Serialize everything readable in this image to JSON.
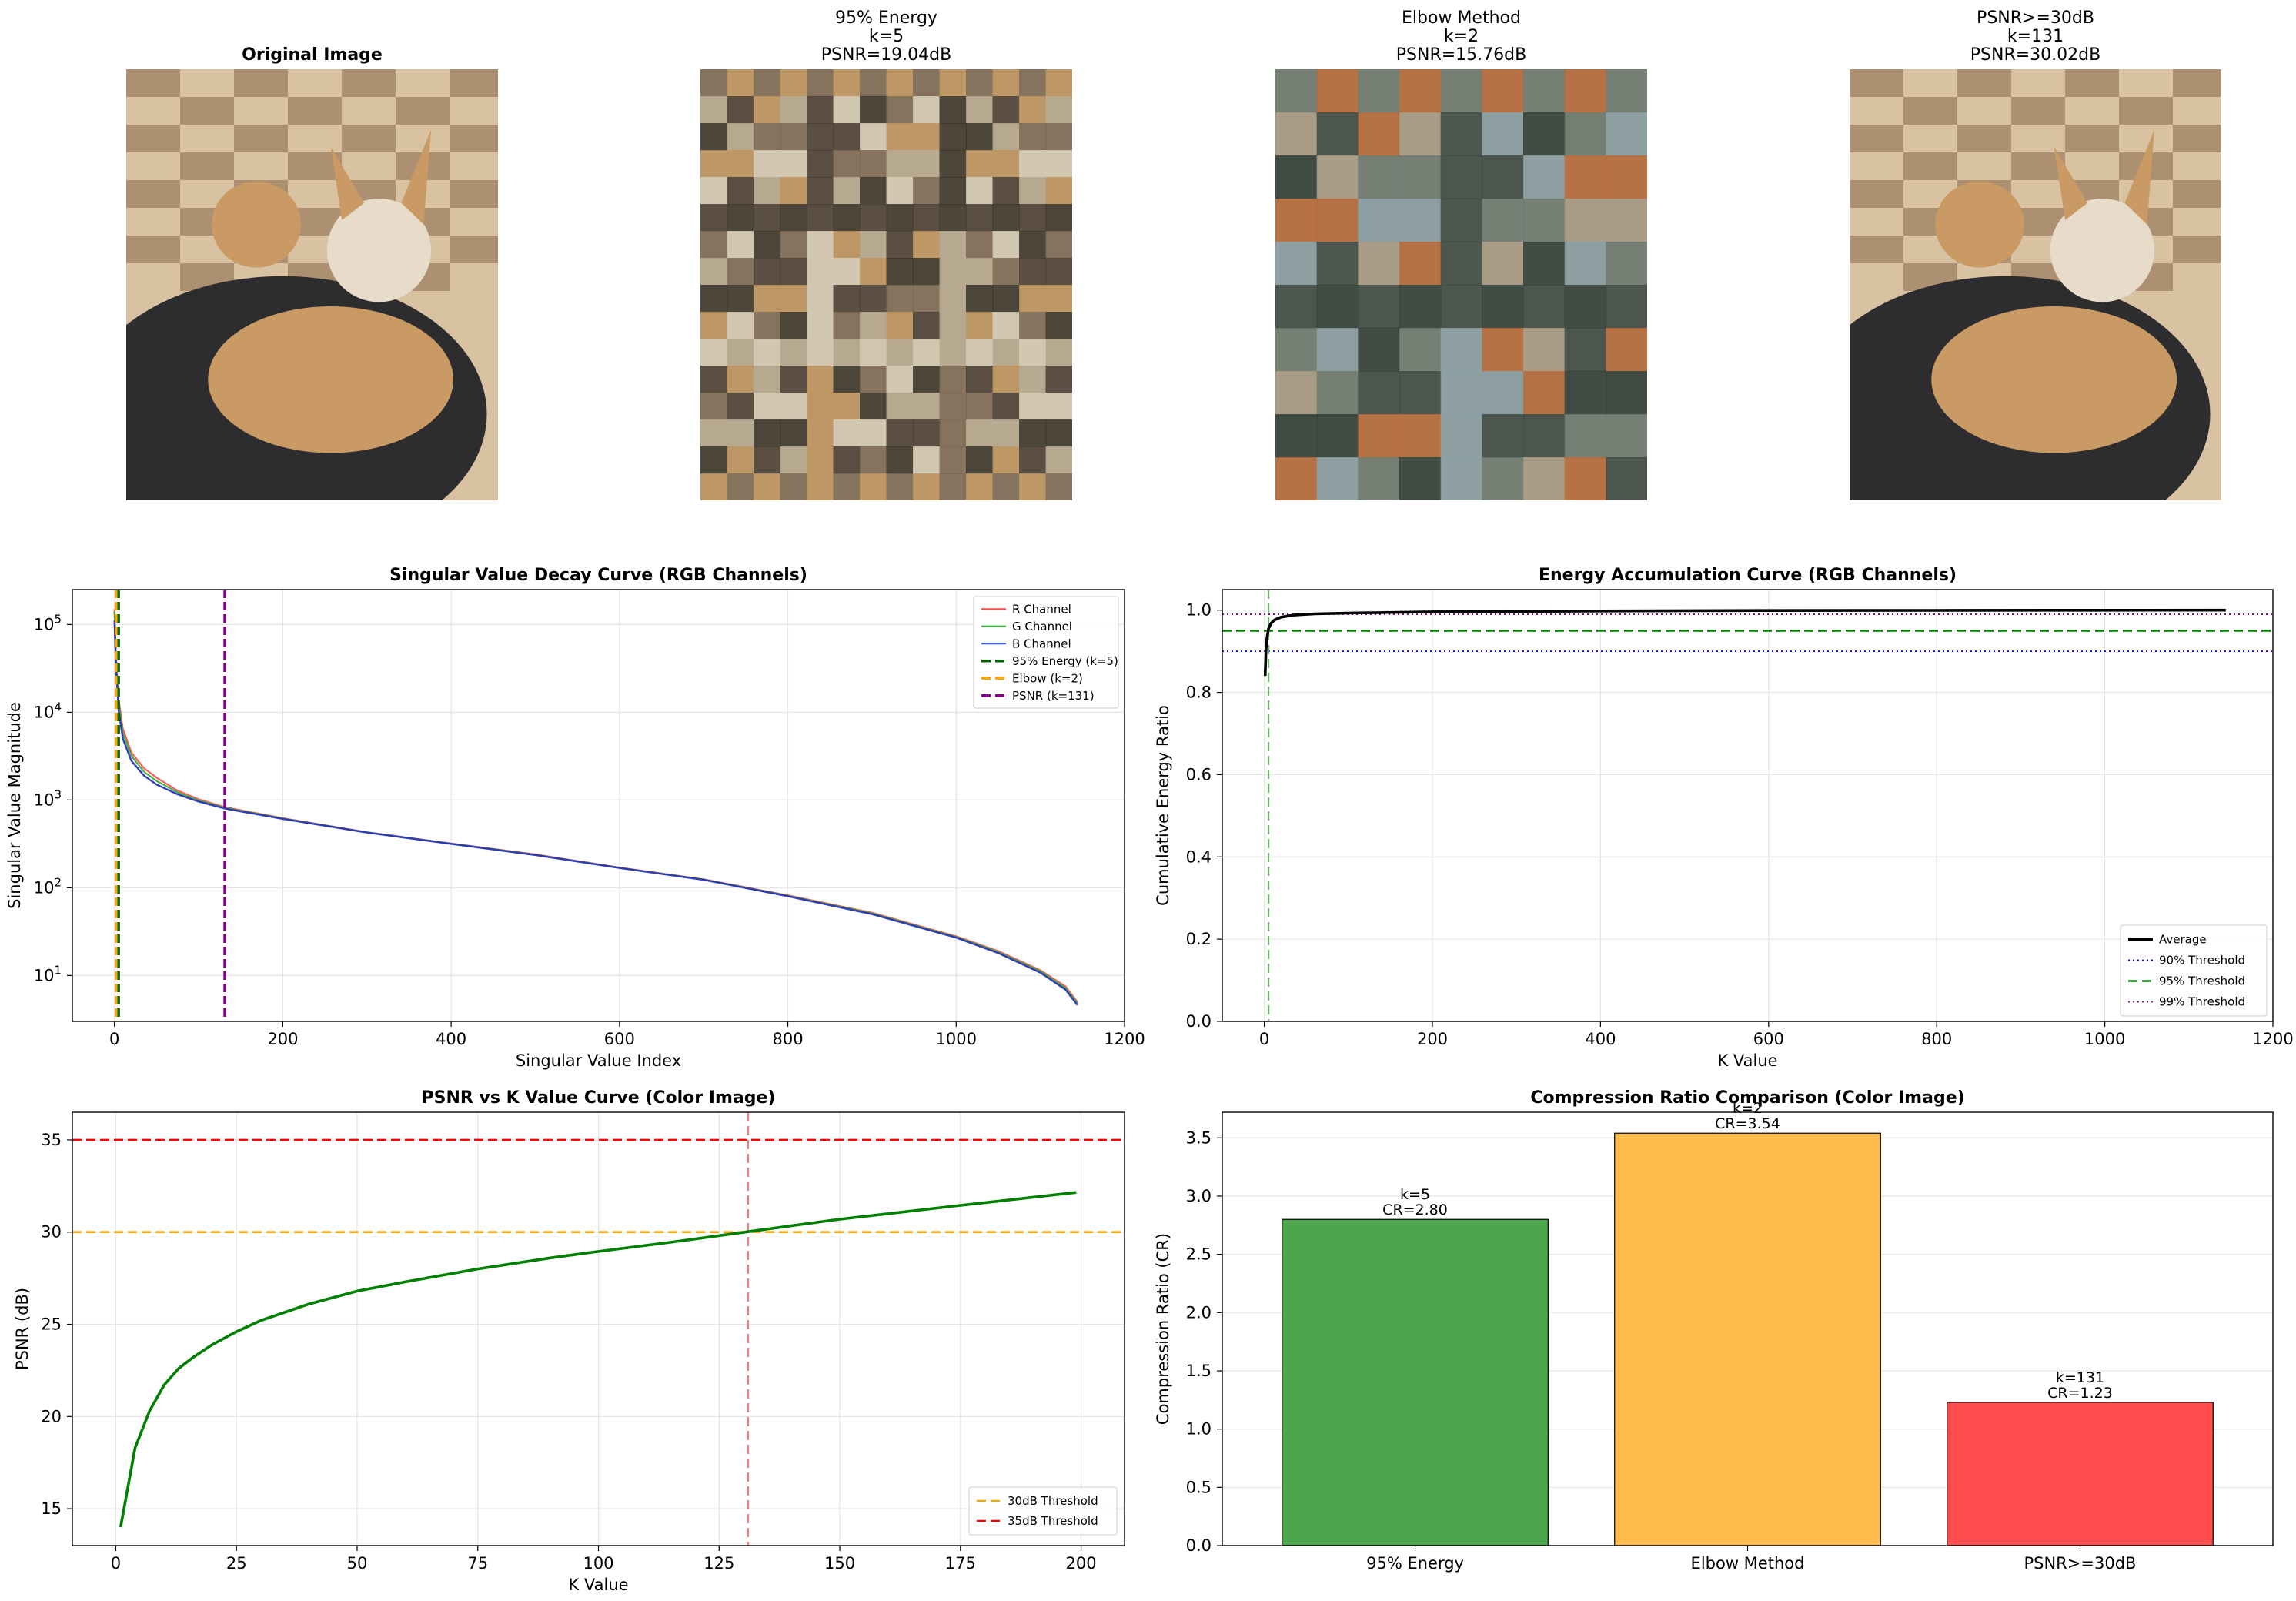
{
  "images": [
    {
      "title": "Original Image",
      "lines": [
        "Original Image"
      ],
      "palette": [
        "#9a7a5c",
        "#d8c2a2",
        "#3a3026",
        "#c99a63",
        "#e7dcc9",
        "#2d2d2f"
      ]
    },
    {
      "title": "95% Energy k=5 PSNR=19.04dB",
      "lines": [
        "95% Energy",
        "k=5",
        "PSNR=19.04dB"
      ],
      "palette": [
        "#7c6a55",
        "#b7a890",
        "#3b352c",
        "#c09460",
        "#d6cbb6",
        "#4a4035"
      ]
    },
    {
      "title": "Elbow Method k=2 PSNR=15.76dB",
      "lines": [
        "Elbow Method",
        "k=2",
        "PSNR=15.76dB"
      ],
      "palette": [
        "#6d7a70",
        "#a89c86",
        "#2f4038",
        "#b86a3a",
        "#8aa0a6",
        "#3c4a44"
      ]
    },
    {
      "title": "PSNR>=30dB k=131 PSNR=30.02dB",
      "lines": [
        "PSNR>=30dB",
        "k=131",
        "PSNR=30.02dB"
      ],
      "palette": [
        "#9a7a5c",
        "#d8c2a2",
        "#3a3026",
        "#c99a63",
        "#e7dcc9",
        "#2d2d2f"
      ]
    }
  ],
  "chart_data": [
    {
      "type": "line",
      "title": "Singular Value Decay Curve (RGB Channels)",
      "xlabel": "Singular Value Index",
      "ylabel": "Singular Value Magnitude",
      "xlim": [
        -50,
        1200
      ],
      "ylim": [
        3,
        250000
      ],
      "yscale": "log",
      "xticks": [
        0,
        200,
        400,
        600,
        800,
        1000,
        1200
      ],
      "yticks": [
        10,
        100,
        1000,
        10000,
        100000
      ],
      "ytick_labels": [
        [
          "10",
          "1"
        ],
        [
          "10",
          "2"
        ],
        [
          "10",
          "3"
        ],
        [
          "10",
          "4"
        ],
        [
          "10",
          "5"
        ]
      ],
      "grid": true,
      "legend_position": "top-right",
      "series": [
        {
          "name": "R Channel",
          "color": "#ff4d4d",
          "x": [
            0,
            2,
            5,
            10,
            20,
            35,
            50,
            75,
            100,
            131,
            200,
            300,
            400,
            500,
            600,
            700,
            800,
            900,
            1000,
            1050,
            1100,
            1130,
            1144
          ],
          "y": [
            150000,
            40000,
            14000,
            6500,
            3500,
            2300,
            1800,
            1280,
            1020,
            830,
            620,
            430,
            320,
            240,
            170,
            125,
            82,
            52,
            28,
            19,
            11.5,
            7.5,
            5
          ]
        },
        {
          "name": "G Channel",
          "color": "#33a833",
          "x": [
            0,
            2,
            5,
            10,
            20,
            35,
            50,
            75,
            100,
            131,
            200,
            300,
            400,
            500,
            600,
            700,
            800,
            900,
            1000,
            1050,
            1100,
            1130,
            1144
          ],
          "y": [
            140000,
            36000,
            12500,
            5800,
            3200,
            2100,
            1650,
            1220,
            990,
            815,
            615,
            428,
            318,
            238,
            169,
            124,
            81,
            51,
            27.5,
            18.5,
            11.2,
            7.2,
            4.8
          ]
        },
        {
          "name": "B Channel",
          "color": "#3d5cff",
          "x": [
            0,
            2,
            5,
            10,
            20,
            35,
            50,
            75,
            100,
            131,
            200,
            300,
            400,
            500,
            600,
            700,
            800,
            900,
            1000,
            1050,
            1100,
            1130,
            1144
          ],
          "y": [
            110000,
            30000,
            10500,
            5000,
            2800,
            1900,
            1500,
            1160,
            960,
            800,
            610,
            425,
            316,
            236,
            168,
            123,
            80,
            50,
            27,
            18,
            10.8,
            6.9,
            4.6
          ]
        }
      ],
      "vlines": [
        {
          "name": "95% Energy (k=5)",
          "x": 5,
          "color": "#006400",
          "style": "dashed"
        },
        {
          "name": "Elbow (k=2)",
          "x": 2,
          "color": "#ffa500",
          "style": "dashed"
        },
        {
          "name": "PSNR (k=131)",
          "x": 131,
          "color": "#8b008b",
          "style": "dashed"
        }
      ]
    },
    {
      "type": "line",
      "title": "Energy Accumulation Curve (RGB Channels)",
      "xlabel": "K Value",
      "ylabel": "Cumulative Energy Ratio",
      "xlim": [
        -50,
        1200
      ],
      "ylim": [
        0,
        1.05
      ],
      "xticks": [
        0,
        200,
        400,
        600,
        800,
        1000,
        1200
      ],
      "yticks": [
        0.0,
        0.2,
        0.4,
        0.6,
        0.8,
        1.0
      ],
      "grid": true,
      "legend_position": "bottom-right",
      "series": [
        {
          "name": "Average",
          "color": "#000000",
          "x": [
            1,
            2,
            3,
            5,
            8,
            12,
            20,
            35,
            60,
            100,
            200,
            400,
            600,
            800,
            1000,
            1144
          ],
          "y": [
            0.84,
            0.9,
            0.93,
            0.955,
            0.968,
            0.976,
            0.983,
            0.988,
            0.991,
            0.993,
            0.996,
            0.998,
            0.999,
            0.9995,
            0.9999,
            1.0
          ]
        }
      ],
      "hlines": [
        {
          "name": "90% Threshold",
          "y": 0.9,
          "color": "#0000ff",
          "style": "dotted"
        },
        {
          "name": "95% Threshold",
          "y": 0.95,
          "color": "#008000",
          "style": "dashed"
        },
        {
          "name": "99% Threshold",
          "y": 0.99,
          "color": "#800080",
          "style": "dotted"
        }
      ],
      "vlines": [
        {
          "name": "",
          "x": 5,
          "color": "#66b866",
          "style": "dashed"
        }
      ]
    },
    {
      "type": "line",
      "title": "PSNR vs K Value Curve (Color Image)",
      "xlabel": "K Value",
      "ylabel": "PSNR (dB)",
      "xlim": [
        -9,
        209
      ],
      "ylim": [
        13,
        36.5
      ],
      "xticks": [
        0,
        25,
        50,
        75,
        100,
        125,
        150,
        175,
        200
      ],
      "yticks": [
        15,
        20,
        25,
        30,
        35
      ],
      "grid": true,
      "legend_position": "bottom-right",
      "series": [
        {
          "name": "",
          "color": "#008000",
          "x": [
            1,
            4,
            7,
            10,
            13,
            16,
            20,
            25,
            30,
            40,
            50,
            60,
            75,
            90,
            100,
            115,
            131,
            150,
            175,
            199
          ],
          "y": [
            14.0,
            18.3,
            20.3,
            21.7,
            22.6,
            23.2,
            23.9,
            24.6,
            25.2,
            26.1,
            26.8,
            27.3,
            28.0,
            28.6,
            28.95,
            29.45,
            30.02,
            30.7,
            31.45,
            32.15
          ]
        }
      ],
      "hlines": [
        {
          "name": "30dB Threshold",
          "y": 30,
          "color": "#ffa500",
          "style": "dashed"
        },
        {
          "name": "35dB Threshold",
          "y": 35,
          "color": "#ff0000",
          "style": "dashed"
        }
      ],
      "vlines": [
        {
          "name": "",
          "x": 131,
          "color": "#f08080",
          "style": "dashed"
        }
      ]
    },
    {
      "type": "bar",
      "title": "Compression Ratio Comparison (Color Image)",
      "xlabel": "",
      "ylabel": "Compression Ratio (CR)",
      "ylim": [
        0,
        3.72
      ],
      "yticks": [
        0.0,
        0.5,
        1.0,
        1.5,
        2.0,
        2.5,
        3.0,
        3.5
      ],
      "grid": true,
      "categories": [
        "95% Energy",
        "Elbow Method",
        "PSNR>=30dB"
      ],
      "values": [
        2.8,
        3.54,
        1.23
      ],
      "colors": [
        "#4ca64c",
        "#ffbb4c",
        "#ff4c4c"
      ],
      "data_labels": [
        [
          "k=5",
          "CR=2.80"
        ],
        [
          "k=2",
          "CR=3.54"
        ],
        [
          "k=131",
          "CR=1.23"
        ]
      ]
    }
  ]
}
